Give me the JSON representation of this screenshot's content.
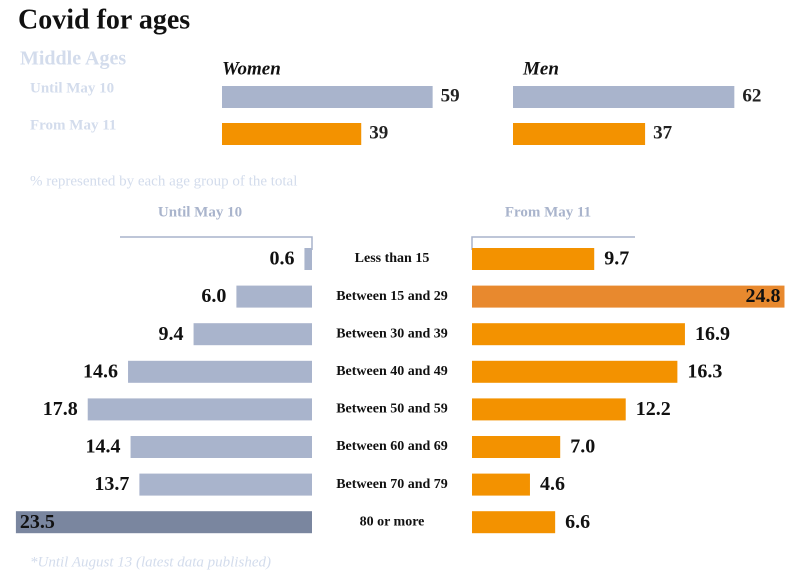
{
  "title": "Covid for ages",
  "footnote": "*Until August 13 (latest data published)",
  "chart_data": [
    {
      "type": "panel-bar",
      "title": "Middle Ages",
      "categories": [
        "Until May 10",
        "From May 11"
      ],
      "colors": [
        "#a9b4cc",
        "#f39200"
      ],
      "series": [
        {
          "name": "Women",
          "values": [
            59,
            39
          ]
        },
        {
          "name": "Men",
          "values": [
            62,
            37
          ]
        }
      ]
    },
    {
      "type": "butterfly",
      "subtitle": "% represented by each age group of the total",
      "categories": [
        "Less than 15",
        "Between 15 and 29",
        "Between 30 and 39",
        "Between 40 and 49",
        "Between 50 and 59",
        "Between 60 and 69",
        "Between 70 and 79",
        "80 or more"
      ],
      "series": [
        {
          "name": "Until May 10",
          "color": "#a9b4cc",
          "highlight": 7,
          "highlight_color": "#7a869f",
          "values": [
            0.6,
            6.0,
            9.4,
            14.6,
            17.8,
            14.4,
            13.7,
            23.5
          ],
          "value_labels": [
            "0.6",
            "6.0",
            "9.4",
            "14.6",
            "17.8",
            "14.4",
            "13.7",
            "23.5"
          ]
        },
        {
          "name": "From May 11",
          "color": "#f39200",
          "highlight": 1,
          "highlight_color": "#e8892e",
          "values": [
            9.7,
            24.8,
            16.9,
            16.3,
            12.2,
            7.0,
            4.6,
            6.6
          ],
          "value_labels": [
            "9.7",
            "24.8",
            "16.9",
            "16.3",
            "12.2",
            "7.0",
            "4.6",
            "6.6"
          ]
        }
      ]
    }
  ]
}
